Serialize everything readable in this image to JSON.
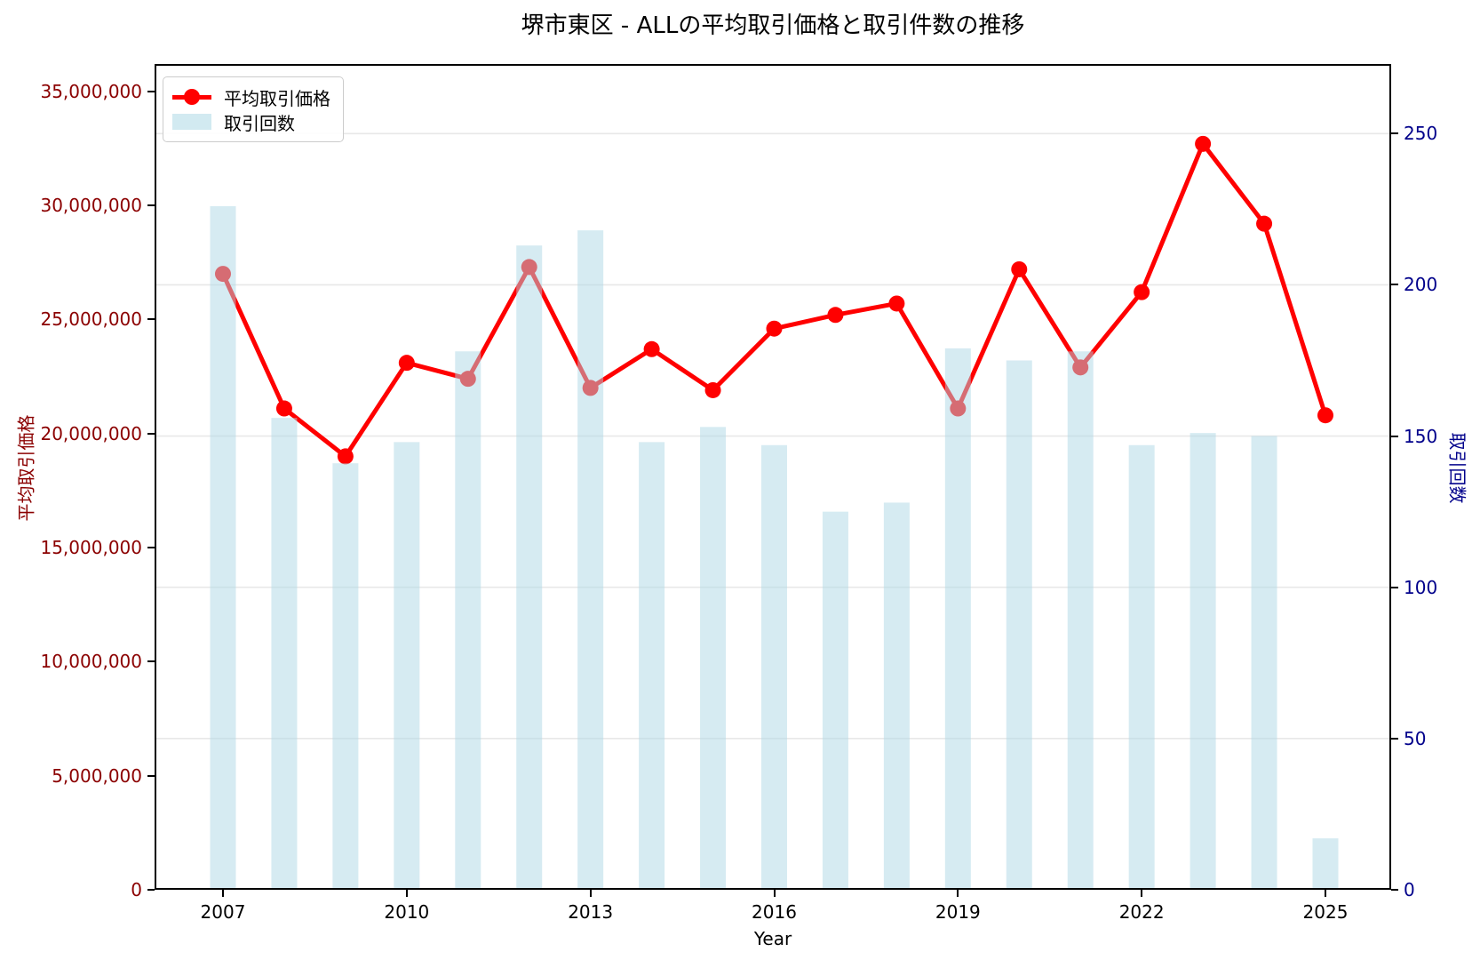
{
  "title": "堺市東区 - ALLの平均取引価格と取引件数の推移",
  "axes": {
    "x_label": "Year",
    "y_left_label": "平均取引価格",
    "y_right_label": "取引回数"
  },
  "legend": [
    {
      "label": "平均取引価格",
      "swatch": "red-line-with-marker"
    },
    {
      "label": "取引回数",
      "swatch": "lightblue-patch"
    }
  ],
  "colors": {
    "line": "#ff0000",
    "bar": "#add8e6",
    "bar_opacity": 0.5,
    "y_left_axis": "#8b0000",
    "y_right_axis": "#00008b",
    "grid": "#e8e8e8",
    "spine": "#000000"
  },
  "chart_data": {
    "type": "bar",
    "subtype": "dual-axis line + bar combo",
    "title": "堺市東区 - ALLの平均取引価格と取引件数の推移",
    "xlabel": "Year",
    "x": [
      2007,
      2008,
      2009,
      2010,
      2011,
      2012,
      2013,
      2014,
      2015,
      2016,
      2017,
      2018,
      2019,
      2020,
      2021,
      2022,
      2023,
      2024,
      2025
    ],
    "x_tick_labels": [
      "2007",
      "2010",
      "2013",
      "2016",
      "2019",
      "2022",
      "2025"
    ],
    "series": [
      {
        "name": "平均取引価格",
        "type": "line",
        "axis": "left",
        "color": "#ff0000",
        "marker": "circle",
        "values": [
          27000000,
          21100000,
          19000000,
          23100000,
          22400000,
          27300000,
          22000000,
          23700000,
          21900000,
          24600000,
          25200000,
          25700000,
          21100000,
          27200000,
          22900000,
          26200000,
          32700000,
          29200000,
          20800000
        ]
      },
      {
        "name": "取引回数",
        "type": "bar",
        "axis": "right",
        "color": "#add8e6",
        "opacity": 0.5,
        "values": [
          226,
          156,
          141,
          148,
          178,
          213,
          218,
          148,
          153,
          147,
          125,
          128,
          179,
          175,
          178,
          147,
          151,
          150,
          17
        ]
      }
    ],
    "y_left": {
      "label": "平均取引価格",
      "ticks": [
        0,
        5000000,
        10000000,
        15000000,
        20000000,
        25000000,
        30000000,
        35000000
      ],
      "tick_labels": [
        "0",
        "5,000,000",
        "10,000,000",
        "15,000,000",
        "20,000,000",
        "25,000,000",
        "30,000,000",
        "35,000,000"
      ],
      "range": [
        0,
        36200000
      ]
    },
    "y_right": {
      "label": "取引回数",
      "ticks": [
        0,
        50,
        100,
        150,
        200,
        250
      ],
      "tick_labels": [
        "0",
        "50",
        "100",
        "150",
        "200",
        "250"
      ],
      "range": [
        0,
        273
      ]
    },
    "grid": "horizontal gridlines at right-axis ticks",
    "legend_position": "upper left"
  }
}
